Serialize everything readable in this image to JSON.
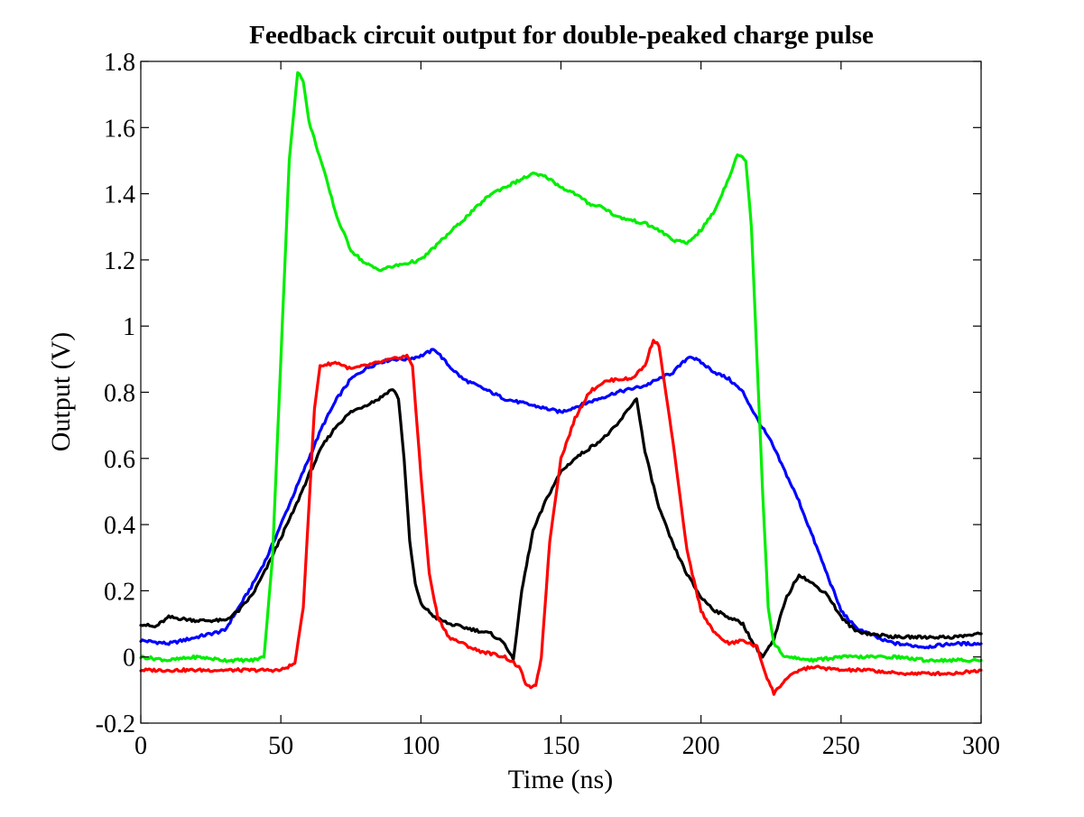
{
  "chart_data": {
    "type": "line",
    "title": "Feedback circuit output for double-peaked charge pulse",
    "xlabel": "Time (ns)",
    "ylabel": "Output (V)",
    "xlim": [
      0,
      300
    ],
    "ylim": [
      -0.2,
      1.8
    ],
    "grid": false,
    "xticks": [
      0,
      50,
      100,
      150,
      200,
      250,
      300
    ],
    "xtick_labels": [
      "0",
      "50",
      "100",
      "150",
      "200",
      "250",
      "300"
    ],
    "yticks": [
      -0.2,
      0,
      0.2,
      0.4,
      0.6,
      0.8,
      1,
      1.2,
      1.4,
      1.6,
      1.8
    ],
    "ytick_labels": [
      "-0.2",
      "0",
      "0.2",
      "0.4",
      "0.6",
      "0.8",
      "1",
      "1.2",
      "1.4",
      "1.6",
      "1.8"
    ],
    "series": [
      {
        "color": "#0000ff",
        "points": [
          [
            0,
            0.05
          ],
          [
            10,
            0.04
          ],
          [
            20,
            0.06
          ],
          [
            30,
            0.08
          ],
          [
            35,
            0.15
          ],
          [
            40,
            0.22
          ],
          [
            45,
            0.3
          ],
          [
            50,
            0.4
          ],
          [
            55,
            0.5
          ],
          [
            60,
            0.6
          ],
          [
            65,
            0.7
          ],
          [
            70,
            0.78
          ],
          [
            75,
            0.84
          ],
          [
            80,
            0.87
          ],
          [
            85,
            0.89
          ],
          [
            90,
            0.9
          ],
          [
            95,
            0.9
          ],
          [
            100,
            0.91
          ],
          [
            105,
            0.93
          ],
          [
            110,
            0.88
          ],
          [
            115,
            0.84
          ],
          [
            120,
            0.82
          ],
          [
            125,
            0.8
          ],
          [
            130,
            0.78
          ],
          [
            140,
            0.76
          ],
          [
            150,
            0.74
          ],
          [
            160,
            0.77
          ],
          [
            170,
            0.8
          ],
          [
            180,
            0.82
          ],
          [
            190,
            0.86
          ],
          [
            196,
            0.91
          ],
          [
            200,
            0.89
          ],
          [
            205,
            0.86
          ],
          [
            210,
            0.84
          ],
          [
            215,
            0.8
          ],
          [
            220,
            0.72
          ],
          [
            225,
            0.65
          ],
          [
            230,
            0.56
          ],
          [
            235,
            0.47
          ],
          [
            240,
            0.36
          ],
          [
            245,
            0.25
          ],
          [
            250,
            0.14
          ],
          [
            255,
            0.09
          ],
          [
            260,
            0.07
          ],
          [
            265,
            0.05
          ],
          [
            270,
            0.04
          ],
          [
            280,
            0.03
          ],
          [
            290,
            0.04
          ],
          [
            300,
            0.04
          ]
        ]
      },
      {
        "color": "#000000",
        "points": [
          [
            0,
            0.1
          ],
          [
            5,
            0.09
          ],
          [
            10,
            0.12
          ],
          [
            20,
            0.11
          ],
          [
            30,
            0.11
          ],
          [
            35,
            0.14
          ],
          [
            40,
            0.19
          ],
          [
            45,
            0.27
          ],
          [
            50,
            0.36
          ],
          [
            55,
            0.45
          ],
          [
            60,
            0.55
          ],
          [
            65,
            0.64
          ],
          [
            70,
            0.7
          ],
          [
            75,
            0.74
          ],
          [
            80,
            0.76
          ],
          [
            85,
            0.78
          ],
          [
            88,
            0.8
          ],
          [
            90,
            0.81
          ],
          [
            92,
            0.78
          ],
          [
            94,
            0.6
          ],
          [
            96,
            0.35
          ],
          [
            98,
            0.22
          ],
          [
            100,
            0.16
          ],
          [
            105,
            0.12
          ],
          [
            110,
            0.1
          ],
          [
            115,
            0.09
          ],
          [
            120,
            0.08
          ],
          [
            125,
            0.07
          ],
          [
            130,
            0.04
          ],
          [
            133,
            -0.01
          ],
          [
            136,
            0.2
          ],
          [
            140,
            0.38
          ],
          [
            145,
            0.48
          ],
          [
            150,
            0.56
          ],
          [
            155,
            0.6
          ],
          [
            160,
            0.63
          ],
          [
            165,
            0.66
          ],
          [
            170,
            0.7
          ],
          [
            175,
            0.76
          ],
          [
            177,
            0.78
          ],
          [
            180,
            0.62
          ],
          [
            185,
            0.45
          ],
          [
            190,
            0.34
          ],
          [
            195,
            0.25
          ],
          [
            200,
            0.18
          ],
          [
            205,
            0.14
          ],
          [
            210,
            0.12
          ],
          [
            215,
            0.1
          ],
          [
            218,
            0.05
          ],
          [
            222,
            0.0
          ],
          [
            226,
            0.05
          ],
          [
            230,
            0.17
          ],
          [
            235,
            0.25
          ],
          [
            240,
            0.22
          ],
          [
            245,
            0.19
          ],
          [
            250,
            0.12
          ],
          [
            255,
            0.08
          ],
          [
            260,
            0.07
          ],
          [
            270,
            0.06
          ],
          [
            280,
            0.06
          ],
          [
            290,
            0.06
          ],
          [
            300,
            0.07
          ]
        ]
      },
      {
        "color": "#ff0000",
        "points": [
          [
            0,
            -0.04
          ],
          [
            10,
            -0.04
          ],
          [
            20,
            -0.04
          ],
          [
            30,
            -0.04
          ],
          [
            40,
            -0.04
          ],
          [
            50,
            -0.04
          ],
          [
            55,
            -0.02
          ],
          [
            58,
            0.15
          ],
          [
            60,
            0.45
          ],
          [
            62,
            0.75
          ],
          [
            64,
            0.88
          ],
          [
            70,
            0.89
          ],
          [
            75,
            0.87
          ],
          [
            80,
            0.88
          ],
          [
            85,
            0.89
          ],
          [
            90,
            0.9
          ],
          [
            95,
            0.91
          ],
          [
            97,
            0.88
          ],
          [
            100,
            0.55
          ],
          [
            103,
            0.25
          ],
          [
            106,
            0.12
          ],
          [
            110,
            0.06
          ],
          [
            115,
            0.04
          ],
          [
            120,
            0.02
          ],
          [
            125,
            0.01
          ],
          [
            130,
            0.0
          ],
          [
            135,
            -0.03
          ],
          [
            138,
            -0.09
          ],
          [
            141,
            -0.09
          ],
          [
            143,
            0.0
          ],
          [
            146,
            0.35
          ],
          [
            150,
            0.6
          ],
          [
            155,
            0.72
          ],
          [
            160,
            0.8
          ],
          [
            165,
            0.83
          ],
          [
            170,
            0.84
          ],
          [
            175,
            0.84
          ],
          [
            180,
            0.88
          ],
          [
            183,
            0.96
          ],
          [
            185,
            0.94
          ],
          [
            190,
            0.65
          ],
          [
            195,
            0.32
          ],
          [
            200,
            0.14
          ],
          [
            205,
            0.07
          ],
          [
            210,
            0.04
          ],
          [
            215,
            0.05
          ],
          [
            220,
            0.03
          ],
          [
            223,
            -0.05
          ],
          [
            226,
            -0.11
          ],
          [
            230,
            -0.07
          ],
          [
            235,
            -0.04
          ],
          [
            240,
            -0.03
          ],
          [
            250,
            -0.04
          ],
          [
            260,
            -0.04
          ],
          [
            270,
            -0.05
          ],
          [
            280,
            -0.05
          ],
          [
            290,
            -0.05
          ],
          [
            300,
            -0.04
          ]
        ]
      },
      {
        "color": "#00ee00",
        "points": [
          [
            0,
            0.0
          ],
          [
            10,
            -0.01
          ],
          [
            20,
            0.0
          ],
          [
            30,
            -0.01
          ],
          [
            40,
            -0.01
          ],
          [
            44,
            0.0
          ],
          [
            47,
            0.3
          ],
          [
            50,
            0.9
          ],
          [
            53,
            1.5
          ],
          [
            56,
            1.77
          ],
          [
            58,
            1.74
          ],
          [
            60,
            1.62
          ],
          [
            65,
            1.48
          ],
          [
            70,
            1.33
          ],
          [
            75,
            1.23
          ],
          [
            80,
            1.19
          ],
          [
            85,
            1.17
          ],
          [
            90,
            1.18
          ],
          [
            95,
            1.19
          ],
          [
            100,
            1.2
          ],
          [
            105,
            1.24
          ],
          [
            110,
            1.28
          ],
          [
            115,
            1.32
          ],
          [
            120,
            1.36
          ],
          [
            125,
            1.4
          ],
          [
            130,
            1.42
          ],
          [
            135,
            1.44
          ],
          [
            140,
            1.46
          ],
          [
            145,
            1.45
          ],
          [
            150,
            1.42
          ],
          [
            155,
            1.4
          ],
          [
            160,
            1.37
          ],
          [
            165,
            1.36
          ],
          [
            170,
            1.33
          ],
          [
            175,
            1.32
          ],
          [
            180,
            1.31
          ],
          [
            185,
            1.29
          ],
          [
            190,
            1.26
          ],
          [
            195,
            1.25
          ],
          [
            200,
            1.29
          ],
          [
            205,
            1.35
          ],
          [
            210,
            1.45
          ],
          [
            213,
            1.52
          ],
          [
            216,
            1.5
          ],
          [
            218,
            1.3
          ],
          [
            220,
            0.9
          ],
          [
            222,
            0.5
          ],
          [
            224,
            0.15
          ],
          [
            226,
            0.04
          ],
          [
            230,
            0.0
          ],
          [
            240,
            -0.01
          ],
          [
            250,
            0.0
          ],
          [
            260,
            0.0
          ],
          [
            270,
            0.0
          ],
          [
            280,
            -0.01
          ],
          [
            290,
            -0.01
          ],
          [
            300,
            -0.01
          ]
        ]
      }
    ]
  }
}
